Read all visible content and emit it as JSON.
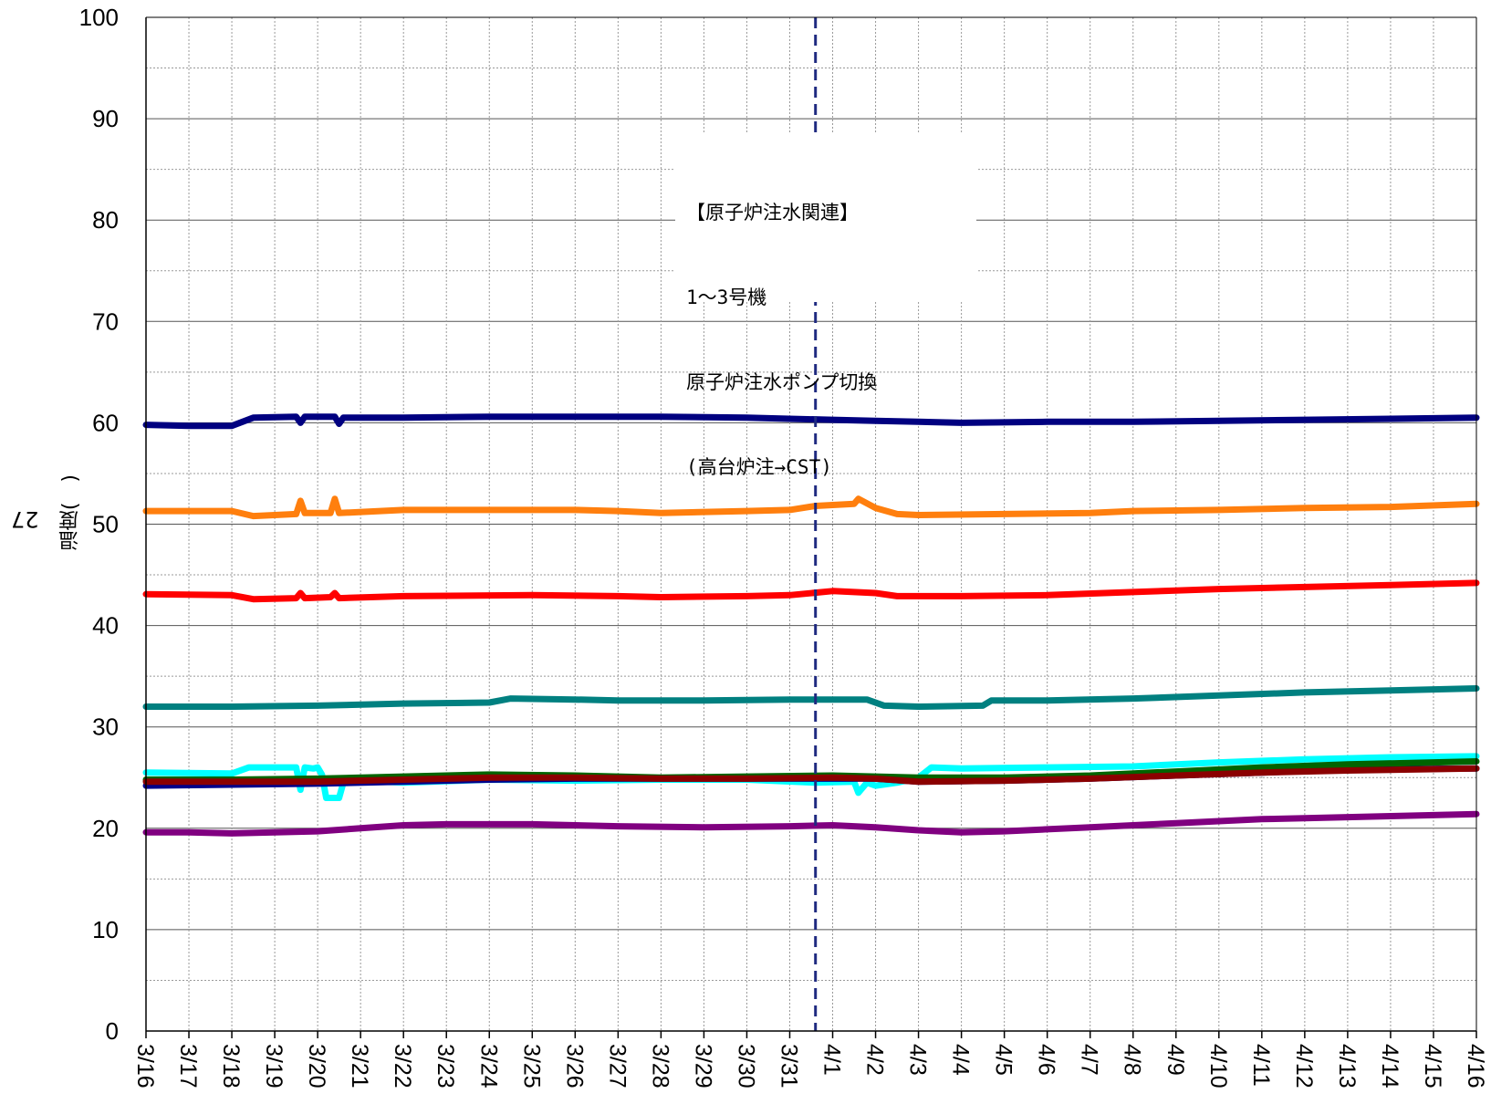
{
  "chart_data": {
    "type": "line",
    "title": "",
    "xlabel": "",
    "ylabel": "温度(　)",
    "corner_text": "27",
    "ylim": [
      0,
      100
    ],
    "yticks": [
      0,
      10,
      20,
      30,
      40,
      50,
      60,
      70,
      80,
      90,
      100
    ],
    "categories": [
      "3/16",
      "3/17",
      "3/18",
      "3/19",
      "3/20",
      "3/21",
      "3/22",
      "3/23",
      "3/24",
      "3/25",
      "3/26",
      "3/27",
      "3/28",
      "3/29",
      "3/30",
      "3/31",
      "4/1",
      "4/2",
      "4/3",
      "4/4",
      "4/5",
      "4/6",
      "4/7",
      "4/8",
      "4/9",
      "4/10",
      "4/11",
      "4/12",
      "4/13",
      "4/14",
      "4/15",
      "4/16"
    ],
    "grid": true,
    "event_line": {
      "x": 15.6,
      "style": "dashed",
      "color": "#1f2a80"
    },
    "annotation": [
      "【原子炉注水関連】",
      "1～3号機",
      "原子炉注水ポンプ切換",
      "(高台炉注→CST)"
    ],
    "series": [
      {
        "color": "#000080",
        "points": [
          [
            0,
            59.8
          ],
          [
            1,
            59.7
          ],
          [
            2,
            59.7
          ],
          [
            2.5,
            60.5
          ],
          [
            3.5,
            60.6
          ],
          [
            3.6,
            60.0
          ],
          [
            3.7,
            60.6
          ],
          [
            4.4,
            60.6
          ],
          [
            4.5,
            59.9
          ],
          [
            4.6,
            60.5
          ],
          [
            6,
            60.5
          ],
          [
            8,
            60.6
          ],
          [
            10,
            60.6
          ],
          [
            12,
            60.6
          ],
          [
            14,
            60.5
          ],
          [
            15,
            60.4
          ],
          [
            16,
            60.3
          ],
          [
            17,
            60.2
          ],
          [
            18,
            60.1
          ],
          [
            19,
            60.0
          ],
          [
            21,
            60.1
          ],
          [
            23,
            60.1
          ],
          [
            25,
            60.2
          ],
          [
            27,
            60.3
          ],
          [
            29,
            60.4
          ],
          [
            31,
            60.5
          ]
        ]
      },
      {
        "color": "#ff7f0e",
        "points": [
          [
            0,
            51.3
          ],
          [
            2,
            51.3
          ],
          [
            2.5,
            50.8
          ],
          [
            3.5,
            51.0
          ],
          [
            3.6,
            52.3
          ],
          [
            3.7,
            51.1
          ],
          [
            4.3,
            51.1
          ],
          [
            4.4,
            52.5
          ],
          [
            4.5,
            51.1
          ],
          [
            6,
            51.4
          ],
          [
            8,
            51.4
          ],
          [
            10,
            51.4
          ],
          [
            11,
            51.3
          ],
          [
            12,
            51.1
          ],
          [
            14,
            51.3
          ],
          [
            15,
            51.4
          ],
          [
            15.6,
            51.8
          ],
          [
            16.5,
            52.0
          ],
          [
            16.6,
            52.5
          ],
          [
            17,
            51.6
          ],
          [
            17.5,
            51.0
          ],
          [
            18,
            50.9
          ],
          [
            20,
            51.0
          ],
          [
            22,
            51.1
          ],
          [
            23,
            51.3
          ],
          [
            25,
            51.4
          ],
          [
            27,
            51.6
          ],
          [
            29,
            51.7
          ],
          [
            31,
            52.0
          ]
        ]
      },
      {
        "color": "#ff0000",
        "points": [
          [
            0,
            43.1
          ],
          [
            2,
            43.0
          ],
          [
            2.5,
            42.6
          ],
          [
            3.5,
            42.7
          ],
          [
            3.6,
            43.2
          ],
          [
            3.7,
            42.7
          ],
          [
            4.3,
            42.8
          ],
          [
            4.4,
            43.2
          ],
          [
            4.5,
            42.7
          ],
          [
            6,
            42.9
          ],
          [
            9,
            43.0
          ],
          [
            11,
            42.9
          ],
          [
            12,
            42.8
          ],
          [
            14,
            42.9
          ],
          [
            15,
            43.0
          ],
          [
            16,
            43.4
          ],
          [
            17,
            43.2
          ],
          [
            17.5,
            42.9
          ],
          [
            19,
            42.9
          ],
          [
            21,
            43.0
          ],
          [
            23,
            43.3
          ],
          [
            25,
            43.6
          ],
          [
            27,
            43.8
          ],
          [
            29,
            44.0
          ],
          [
            31,
            44.2
          ]
        ]
      },
      {
        "color": "#008080",
        "points": [
          [
            0,
            32.0
          ],
          [
            2,
            32.0
          ],
          [
            4,
            32.1
          ],
          [
            6,
            32.3
          ],
          [
            8,
            32.4
          ],
          [
            8.5,
            32.8
          ],
          [
            10,
            32.7
          ],
          [
            11,
            32.6
          ],
          [
            13,
            32.6
          ],
          [
            15,
            32.7
          ],
          [
            16.8,
            32.7
          ],
          [
            17.2,
            32.1
          ],
          [
            18,
            32.0
          ],
          [
            19.5,
            32.1
          ],
          [
            19.7,
            32.6
          ],
          [
            21,
            32.6
          ],
          [
            23,
            32.8
          ],
          [
            25,
            33.1
          ],
          [
            27,
            33.4
          ],
          [
            29,
            33.6
          ],
          [
            31,
            33.8
          ]
        ]
      },
      {
        "color": "#00ffff",
        "points": [
          [
            0,
            25.5
          ],
          [
            2,
            25.4
          ],
          [
            2.4,
            26.0
          ],
          [
            3.5,
            26.0
          ],
          [
            3.6,
            23.8
          ],
          [
            3.7,
            26.0
          ],
          [
            3.9,
            25.9
          ],
          [
            4,
            26.0
          ],
          [
            4.1,
            25.3
          ],
          [
            4.2,
            23.0
          ],
          [
            4.5,
            23.0
          ],
          [
            4.6,
            24.5
          ],
          [
            5,
            24.8
          ],
          [
            5.5,
            24.6
          ],
          [
            6,
            24.5
          ],
          [
            8,
            24.8
          ],
          [
            10,
            24.7
          ],
          [
            12,
            24.8
          ],
          [
            14,
            24.8
          ],
          [
            15.1,
            24.6
          ],
          [
            15.6,
            24.5
          ],
          [
            16.5,
            24.6
          ],
          [
            16.6,
            23.5
          ],
          [
            16.8,
            24.5
          ],
          [
            17,
            24.2
          ],
          [
            17.5,
            24.5
          ],
          [
            18,
            25.0
          ],
          [
            18.3,
            26.0
          ],
          [
            19,
            25.9
          ],
          [
            21,
            26.0
          ],
          [
            23,
            26.1
          ],
          [
            25,
            26.5
          ],
          [
            27,
            26.8
          ],
          [
            29,
            27.0
          ],
          [
            31,
            27.1
          ]
        ]
      },
      {
        "color": "#00008b",
        "points": [
          [
            0,
            24.2
          ],
          [
            2,
            24.3
          ],
          [
            4,
            24.4
          ],
          [
            6,
            24.6
          ],
          [
            8,
            24.8
          ],
          [
            10,
            24.9
          ],
          [
            12,
            24.9
          ],
          [
            14,
            24.9
          ],
          [
            16,
            24.9
          ],
          [
            17,
            24.9
          ],
          [
            18,
            24.6
          ],
          [
            20,
            24.7
          ],
          [
            22,
            24.9
          ],
          [
            24,
            25.2
          ],
          [
            26,
            25.5
          ],
          [
            28,
            25.8
          ],
          [
            31,
            25.9
          ]
        ]
      },
      {
        "color": "#006400",
        "points": [
          [
            0,
            24.8
          ],
          [
            2,
            24.8
          ],
          [
            4,
            24.9
          ],
          [
            6,
            25.1
          ],
          [
            8,
            25.3
          ],
          [
            10,
            25.2
          ],
          [
            12,
            25.0
          ],
          [
            14,
            25.1
          ],
          [
            16,
            25.2
          ],
          [
            17,
            25.1
          ],
          [
            18,
            25.0
          ],
          [
            20,
            25.0
          ],
          [
            22,
            25.2
          ],
          [
            24,
            25.6
          ],
          [
            26,
            26.0
          ],
          [
            28,
            26.3
          ],
          [
            31,
            26.6
          ]
        ]
      },
      {
        "color": "#8b0000",
        "points": [
          [
            0,
            24.6
          ],
          [
            2,
            24.6
          ],
          [
            4,
            24.6
          ],
          [
            6,
            24.8
          ],
          [
            8,
            25.0
          ],
          [
            10,
            25.0
          ],
          [
            12,
            24.9
          ],
          [
            14,
            24.9
          ],
          [
            16,
            25.0
          ],
          [
            17,
            24.9
          ],
          [
            18,
            24.6
          ],
          [
            20,
            24.7
          ],
          [
            22,
            24.9
          ],
          [
            24,
            25.2
          ],
          [
            26,
            25.5
          ],
          [
            28,
            25.7
          ],
          [
            31,
            25.9
          ]
        ]
      },
      {
        "color": "#800080",
        "points": [
          [
            0,
            19.6
          ],
          [
            1,
            19.6
          ],
          [
            2,
            19.5
          ],
          [
            4,
            19.7
          ],
          [
            5,
            20.0
          ],
          [
            6,
            20.3
          ],
          [
            7,
            20.4
          ],
          [
            9,
            20.4
          ],
          [
            11,
            20.2
          ],
          [
            13,
            20.1
          ],
          [
            15,
            20.2
          ],
          [
            16,
            20.3
          ],
          [
            17,
            20.1
          ],
          [
            18,
            19.8
          ],
          [
            19,
            19.6
          ],
          [
            20,
            19.7
          ],
          [
            21,
            19.9
          ],
          [
            22,
            20.1
          ],
          [
            23,
            20.3
          ],
          [
            24,
            20.5
          ],
          [
            25,
            20.7
          ],
          [
            26,
            20.9
          ],
          [
            27,
            21.0
          ],
          [
            28,
            21.1
          ],
          [
            29,
            21.2
          ],
          [
            30,
            21.3
          ],
          [
            31,
            21.4
          ]
        ]
      }
    ]
  }
}
